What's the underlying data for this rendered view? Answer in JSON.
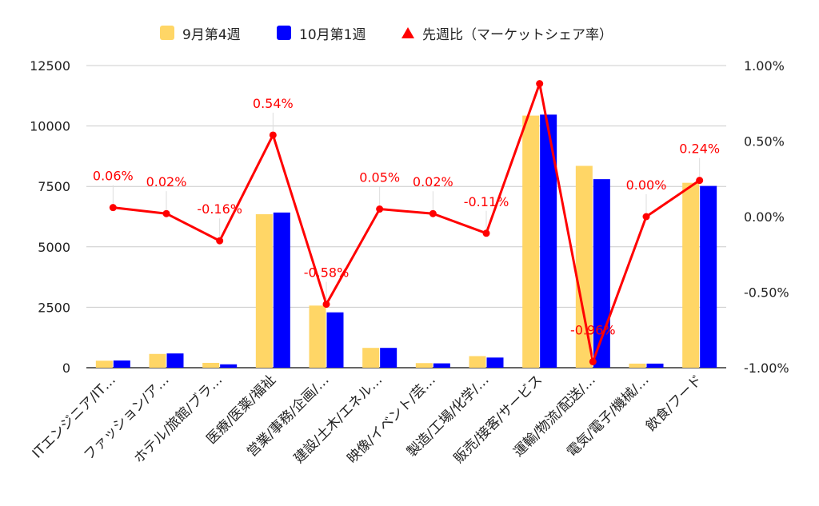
{
  "chart_data": {
    "type": "bar",
    "categories": [
      "ITエンジニア/IT…",
      "ファッション/ア…",
      "ホテル/旅館/ブラ…",
      "医療/医薬/福祉",
      "営業/事務/企画/…",
      "建設/土木/エネル…",
      "映像/イベント/芸…",
      "製造/工場/化学/…",
      "販売/接客/サービス",
      "運輸/物流/配送/…",
      "電気/電子/機械/…",
      "飲食/フード"
    ],
    "series": [
      {
        "name": "9月第4週",
        "type": "bar",
        "axis": "left",
        "color": "#ffd666",
        "values": [
          290,
          570,
          200,
          6350,
          2570,
          820,
          190,
          480,
          10430,
          8350,
          170,
          7650
        ]
      },
      {
        "name": "10月第1週",
        "type": "bar",
        "axis": "left",
        "color": "#0000ff",
        "values": [
          300,
          590,
          140,
          6420,
          2290,
          820,
          180,
          420,
          10470,
          7800,
          170,
          7520
        ]
      },
      {
        "name": "先週比（マーケットシェア率）",
        "type": "line",
        "axis": "right",
        "color": "#ff0000",
        "values": [
          0.06,
          0.02,
          -0.16,
          0.54,
          -0.58,
          0.05,
          0.02,
          -0.11,
          0.88,
          -0.96,
          0.0,
          0.24
        ],
        "labels": [
          "0.06%",
          "0.02%",
          "-0.16%",
          "0.54%",
          "-0.58%",
          "0.05%",
          "0.02%",
          "-0.11%",
          "",
          "-0.96%",
          "0.00%",
          "0.24%"
        ]
      }
    ],
    "y_left": {
      "min": 0,
      "max": 12500,
      "ticks": [
        "0",
        "2500",
        "5000",
        "7500",
        "10000",
        "12500"
      ],
      "tick_values": [
        0,
        2500,
        5000,
        7500,
        10000,
        12500
      ]
    },
    "y_right": {
      "min": -1.0,
      "max": 1.0,
      "ticks": [
        "-1.00%",
        "-0.50%",
        "0.00%",
        "0.50%",
        "1.00%"
      ],
      "tick_values": [
        -1.0,
        -0.5,
        0.0,
        0.5,
        1.0
      ]
    },
    "grid": true,
    "legend_position": "top-center"
  }
}
